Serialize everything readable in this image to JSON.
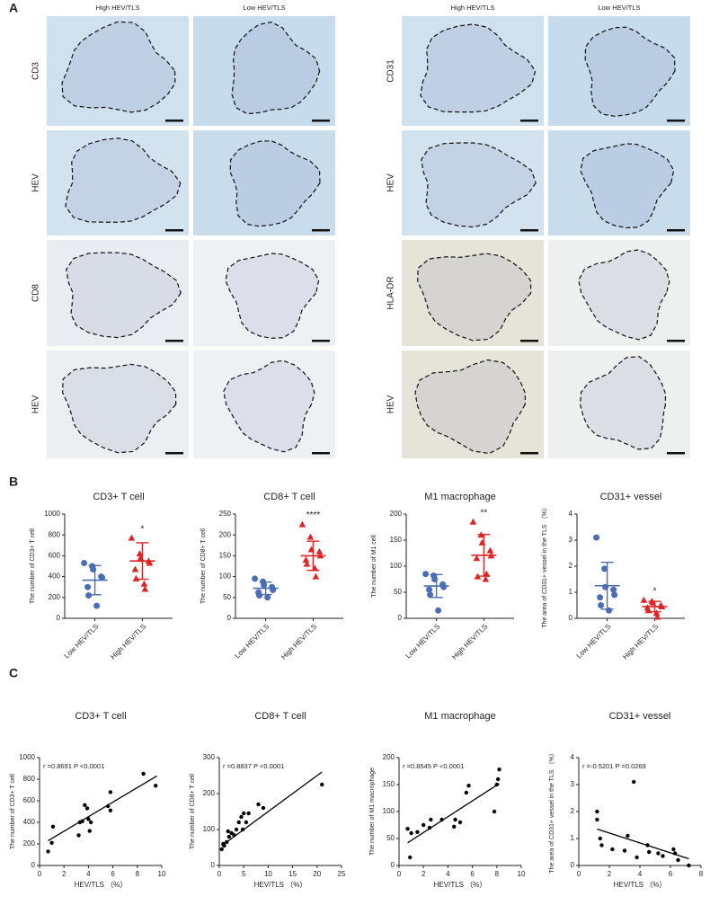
{
  "panel_labels": [
    "A",
    "B",
    "C"
  ],
  "panel_a": {
    "groups": [
      {
        "columns": [
          "High HEV/TLS",
          "Low HEV/TLS"
        ],
        "rows": [
          "CD3",
          "HEV",
          "CD8",
          "HEV"
        ]
      },
      {
        "columns": [
          "High HEV/TLS",
          "Low HEV/TLS"
        ],
        "rows": [
          "CD31",
          "HEV",
          "HLA-DR",
          "HEV"
        ]
      }
    ]
  },
  "chart_data": [
    {
      "type": "strip",
      "title": "CD3+ T cell",
      "ylabel": "The number of CD3+ T cell",
      "categories": [
        "Low HEV/TLS",
        "High HEV/TLS"
      ],
      "ylim": [
        0,
        1000
      ],
      "yticks": [
        0,
        200,
        400,
        600,
        800,
        1000
      ],
      "series": [
        {
          "color": "#4a6db3",
          "marker": "circle",
          "values": [
            530,
            500,
            470,
            400,
            390,
            300,
            220,
            120
          ],
          "mean": 366,
          "sd": 140
        },
        {
          "color": "#e02424",
          "marker": "triangle",
          "values": [
            770,
            620,
            580,
            550,
            530,
            470,
            380,
            330,
            280
          ],
          "mean": 550,
          "sd": 175,
          "annotation": "*"
        }
      ]
    },
    {
      "type": "strip",
      "title": "CD8+ T cell",
      "ylabel": "The number of CD8+ T cell",
      "categories": [
        "Low HEV/TLS",
        "High HEV/TLS"
      ],
      "ylim": [
        0,
        250
      ],
      "yticks": [
        0,
        50,
        100,
        150,
        200,
        250
      ],
      "series": [
        {
          "color": "#4a6db3",
          "marker": "circle",
          "values": [
            95,
            88,
            80,
            75,
            68,
            62,
            55,
            50
          ],
          "mean": 72,
          "sd": 15
        },
        {
          "color": "#e02424",
          "marker": "triangle",
          "values": [
            225,
            195,
            165,
            160,
            150,
            140,
            130,
            120,
            100
          ],
          "mean": 150,
          "sd": 35,
          "annotation": "****"
        }
      ]
    },
    {
      "type": "strip",
      "title": "M1 macrophage",
      "ylabel": "The number of M1 cell",
      "categories": [
        "Low HEV/TLS",
        "High HEV/TLS"
      ],
      "ylim": [
        0,
        200
      ],
      "yticks": [
        0,
        50,
        100,
        150,
        200
      ],
      "series": [
        {
          "color": "#4a6db3",
          "marker": "circle",
          "values": [
            85,
            82,
            75,
            65,
            60,
            55,
            45,
            15
          ],
          "mean": 62,
          "sd": 22
        },
        {
          "color": "#e02424",
          "marker": "triangle",
          "values": [
            185,
            160,
            145,
            130,
            120,
            115,
            80,
            75,
            85
          ],
          "mean": 121,
          "sd": 40,
          "annotation": "**"
        }
      ]
    },
    {
      "type": "strip",
      "title": "CD31+ vessel",
      "ylabel": "The area of CD31+ vessel in the TLS （%）",
      "categories": [
        "Low HEV/TLS",
        "High HEV/TLS"
      ],
      "ylim": [
        0,
        4
      ],
      "yticks": [
        0,
        1,
        2,
        3,
        4
      ],
      "series": [
        {
          "color": "#4a6db3",
          "marker": "circle",
          "values": [
            3.1,
            1.9,
            1.2,
            1.1,
            0.9,
            0.8,
            0.5,
            0.3
          ],
          "mean": 1.25,
          "sd": 0.9
        },
        {
          "color": "#e02424",
          "marker": "triangle",
          "values": [
            0.7,
            0.65,
            0.6,
            0.5,
            0.45,
            0.4,
            0.3,
            0.2,
            0.05
          ],
          "mean": 0.45,
          "sd": 0.2,
          "annotation": "*"
        }
      ]
    },
    {
      "type": "scatter",
      "title": "CD3+ T cell",
      "ylabel": "The number of CD3+ T cell",
      "xlabel": "HEV/TLS （%）",
      "stat": "r =0.8691 P <0.0001",
      "color": "#000000",
      "xlim": [
        0,
        10
      ],
      "xticks": [
        0,
        2,
        4,
        6,
        8,
        10
      ],
      "ylim": [
        0,
        1000
      ],
      "yticks": [
        0,
        200,
        400,
        600,
        800,
        1000
      ],
      "x": [
        0.7,
        1,
        1.1,
        3.2,
        3.3,
        3.5,
        3.7,
        3.9,
        4,
        4.1,
        4.2,
        5.6,
        5.8,
        5.8,
        8.5,
        9.5
      ],
      "y": [
        130,
        210,
        360,
        280,
        400,
        410,
        560,
        530,
        430,
        320,
        400,
        550,
        510,
        680,
        850,
        740
      ],
      "fit": {
        "x": [
          0.7,
          9.6
        ],
        "y": [
          230,
          830
        ]
      }
    },
    {
      "type": "scatter",
      "title": "CD8+ T cell",
      "ylabel": "The number of CD8+ T cell",
      "xlabel": "HEV/TLS （%）",
      "stat": "r =0.8837 P <0.0001",
      "color": "#000000",
      "xlim": [
        0,
        25
      ],
      "xticks": [
        0,
        5,
        10,
        15,
        20,
        25
      ],
      "ylim": [
        0,
        300
      ],
      "yticks": [
        0,
        100,
        200,
        300
      ],
      "x": [
        0.5,
        0.8,
        1,
        1.5,
        1.8,
        2,
        2.5,
        3,
        3.5,
        4,
        4.5,
        4.8,
        5,
        5.5,
        6,
        8,
        9,
        21
      ],
      "y": [
        45,
        60,
        55,
        65,
        95,
        80,
        90,
        85,
        100,
        120,
        135,
        100,
        145,
        120,
        145,
        170,
        160,
        225
      ],
      "fit": {
        "x": [
          0.5,
          21
        ],
        "y": [
          55,
          260
        ]
      }
    },
    {
      "type": "scatter",
      "title": "M1 macrophage",
      "ylabel": "The number of M1 macrophage",
      "xlabel": "HEV/TLS （%）",
      "stat": "r =0.8545 P <0.0001",
      "color": "#000000",
      "xlim": [
        0,
        10
      ],
      "xticks": [
        0,
        2,
        4,
        6,
        8,
        10
      ],
      "ylim": [
        0,
        200
      ],
      "yticks": [
        0,
        50,
        100,
        150,
        200
      ],
      "x": [
        0.7,
        0.9,
        1,
        1.5,
        2,
        2.5,
        2.6,
        3.5,
        4.5,
        4.6,
        5,
        5.5,
        5.7,
        7.8,
        8,
        8.1,
        8.2
      ],
      "y": [
        68,
        15,
        60,
        62,
        75,
        70,
        85,
        85,
        72,
        85,
        80,
        135,
        148,
        100,
        150,
        160,
        178
      ],
      "fit": {
        "x": [
          0.7,
          8.2
        ],
        "y": [
          42,
          152
        ]
      }
    },
    {
      "type": "scatter",
      "title": "CD31+ vessel",
      "ylabel": "The area of CD31+ vessel in the TLS （%）",
      "xlabel": "HEV/TLS （%）",
      "stat": "r =-0.5201 P =0.0269",
      "color": "#000000",
      "xlim": [
        0,
        8
      ],
      "xticks": [
        0,
        2,
        4,
        6,
        8
      ],
      "ylim": [
        0,
        4
      ],
      "yticks": [
        0,
        1,
        2,
        3,
        4
      ],
      "x": [
        1.2,
        1.2,
        1.4,
        1.5,
        2.2,
        3,
        3.2,
        3.6,
        3.8,
        4.5,
        4.6,
        5.2,
        5.5,
        6.2,
        6.3,
        6.5,
        7.2
      ],
      "y": [
        2.0,
        1.7,
        1.0,
        0.75,
        0.6,
        0.55,
        1.1,
        3.1,
        0.3,
        0.75,
        0.5,
        0.45,
        0.35,
        0.6,
        0.45,
        0.2,
        0.0
      ],
      "fit": {
        "x": [
          1.2,
          7.2
        ],
        "y": [
          1.35,
          0.25
        ]
      }
    }
  ]
}
